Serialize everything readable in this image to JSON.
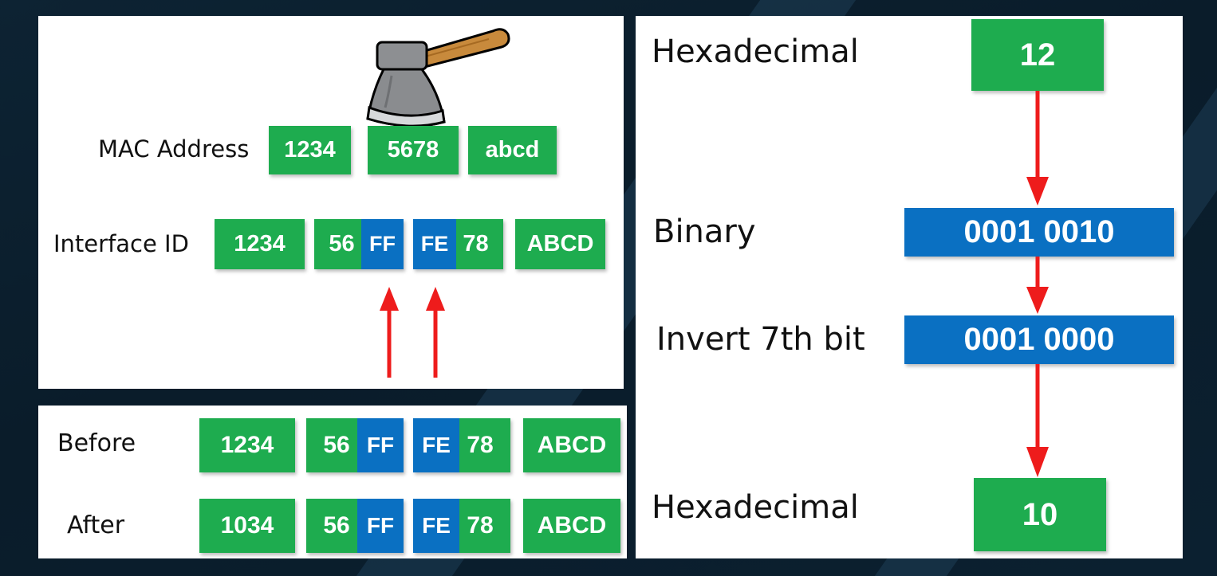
{
  "colors": {
    "green": "#1eac4f",
    "blue": "#0a70c2",
    "arrow": "#ee1c1c"
  },
  "mac": {
    "label": "MAC Address",
    "blocks": [
      "1234",
      "5678",
      "abcd"
    ]
  },
  "interface": {
    "label": "Interface ID",
    "b1": "1234",
    "b2_left": "56",
    "b2_right": "FF",
    "b3_left": "FE",
    "b3_right": "78",
    "b4": "ABCD"
  },
  "before": {
    "label": "Before",
    "b1": "1234",
    "b2_left": "56",
    "b2_right": "FF",
    "b3_left": "FE",
    "b3_right": "78",
    "b4": "ABCD"
  },
  "after": {
    "label": "After",
    "b1": "1034",
    "b2_left": "56",
    "b2_right": "FF",
    "b3_left": "FE",
    "b3_right": "78",
    "b4": "ABCD"
  },
  "conversion": {
    "hex_label": "Hexadecimal",
    "hex_value": "12",
    "binary_label": "Binary",
    "binary_value": "0001 0010",
    "invert_label": "Invert 7th bit",
    "inverted_value": "0001 0000",
    "result_label": "Hexadecimal",
    "result_value": "10"
  }
}
